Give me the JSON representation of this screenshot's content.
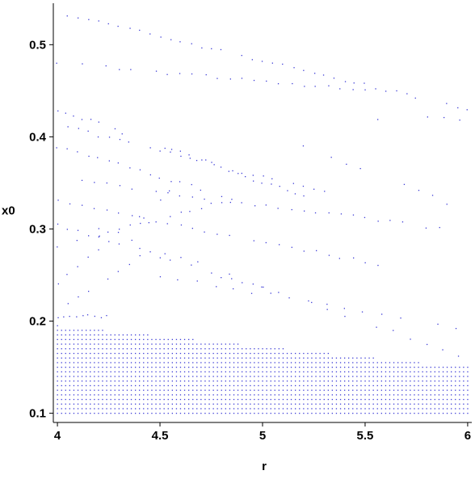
{
  "chart_data": {
    "type": "scatter",
    "title": "",
    "xlabel": "r",
    "ylabel": "x0",
    "xlim": [
      3.98,
      6.02
    ],
    "ylim": [
      0.09,
      0.545
    ],
    "xticks": [
      4,
      4.5,
      5,
      5.5,
      6
    ],
    "xtick_labels": [
      "4",
      "4.5",
      "5",
      "5.5",
      "6"
    ],
    "yticks": [
      0.1,
      0.2,
      0.3,
      0.4,
      0.5
    ],
    "ytick_labels": [
      "0.1",
      "0.2",
      "0.3",
      "0.4",
      "0.5"
    ],
    "grid": false,
    "legend": "none",
    "point_color": "#3b3bd6",
    "axis_color": "#000000",
    "regions": [
      {
        "kind": "dense_band",
        "r_from": 4.0,
        "r_to": 6.0,
        "x0_from": 0.1,
        "x0_to_at_r_start": 0.195,
        "x0_to_at_r_end": 0.15,
        "r_step": 0.02,
        "x0_step": 0.005
      },
      {
        "kind": "stripe",
        "r_from": 4.0,
        "r_to": 6.0,
        "x0_at_r_start": 0.535,
        "x0_at_r_end": 0.43,
        "r_step": 0.05
      },
      {
        "kind": "stripe",
        "r_from": 4.0,
        "r_to": 5.5,
        "x0_at_r_start": 0.48,
        "x0_at_r_end": 0.45,
        "r_step": 0.06
      },
      {
        "kind": "stripe",
        "r_from": 4.0,
        "r_to": 5.2,
        "x0_at_r_start": 0.43,
        "x0_at_r_end": 0.335,
        "r_step": 0.04
      },
      {
        "kind": "stripe",
        "r_from": 4.05,
        "r_to": 5.3,
        "x0_at_r_start": 0.41,
        "x0_at_r_end": 0.34,
        "r_step": 0.05
      },
      {
        "kind": "stripe",
        "r_from": 4.0,
        "r_to": 4.9,
        "x0_at_r_start": 0.39,
        "x0_at_r_end": 0.33,
        "r_step": 0.05
      },
      {
        "kind": "stripe",
        "r_from": 4.0,
        "r_to": 5.9,
        "x0_at_r_start": 0.355,
        "x0_at_r_end": 0.3,
        "r_step": 0.06
      },
      {
        "kind": "stripe",
        "r_from": 4.0,
        "r_to": 5.6,
        "x0_at_r_start": 0.33,
        "x0_at_r_end": 0.26,
        "r_step": 0.06
      },
      {
        "kind": "stripe",
        "r_from": 4.0,
        "r_to": 5.0,
        "x0_at_r_start": 0.305,
        "x0_at_r_end": 0.235,
        "r_step": 0.05
      },
      {
        "kind": "stripe",
        "r_from": 4.0,
        "r_to": 4.8,
        "x0_at_r_start": 0.28,
        "x0_at_r_end": 0.33,
        "r_step": 0.05
      },
      {
        "kind": "stripe",
        "r_from": 4.0,
        "r_to": 4.6,
        "x0_at_r_start": 0.24,
        "x0_at_r_end": 0.35,
        "r_step": 0.05
      },
      {
        "kind": "stripe",
        "r_from": 4.0,
        "r_to": 4.4,
        "x0_at_r_start": 0.21,
        "x0_at_r_end": 0.27,
        "r_step": 0.05
      },
      {
        "kind": "stripe",
        "r_from": 4.0,
        "r_to": 4.25,
        "x0_at_r_start": 0.205,
        "x0_at_r_end": 0.205,
        "r_step": 0.03
      },
      {
        "kind": "stripe",
        "r_from": 4.2,
        "r_to": 6.0,
        "x0_at_r_start": 0.3,
        "x0_at_r_end": 0.16,
        "r_step": 0.08
      },
      {
        "kind": "stripe",
        "r_from": 4.5,
        "r_to": 6.0,
        "x0_at_r_start": 0.25,
        "x0_at_r_end": 0.19,
        "r_step": 0.09
      },
      {
        "kind": "stripe",
        "r_from": 5.2,
        "r_to": 6.0,
        "x0_at_r_start": 0.39,
        "x0_at_r_end": 0.32,
        "r_step": 0.07
      },
      {
        "kind": "stripe",
        "r_from": 5.4,
        "r_to": 6.0,
        "x0_at_r_start": 0.42,
        "x0_at_r_end": 0.42,
        "r_step": 0.08
      }
    ]
  }
}
